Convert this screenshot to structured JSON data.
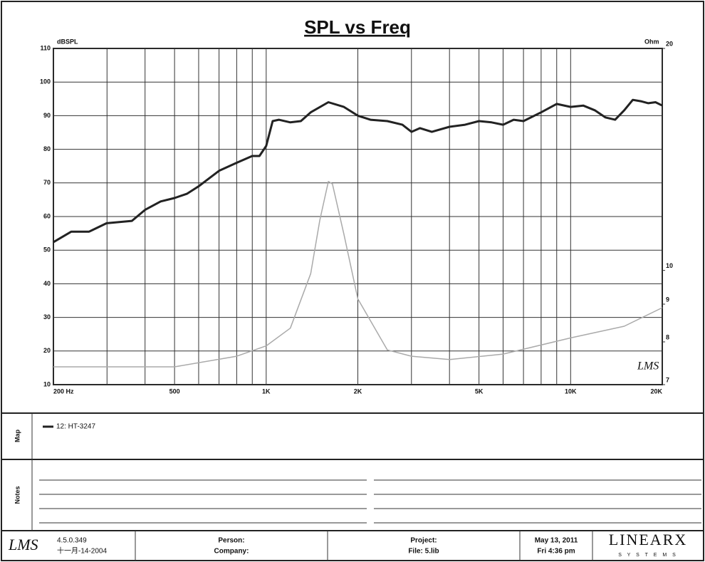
{
  "chart_data": {
    "type": "line",
    "title": "SPL vs Freq",
    "ylabel": "dBSPL",
    "y2label": "Ohm",
    "watermark": "LMS",
    "xscale": "log",
    "y2scale": "log",
    "grid": true,
    "xlim": [
      200,
      20000
    ],
    "xticks": [
      {
        "value": 200,
        "label": "200 Hz"
      },
      500,
      {
        "value": 1000,
        "label": "1K"
      },
      {
        "value": 2000,
        "label": "2K"
      },
      {
        "value": 5000,
        "label": "5K"
      },
      {
        "value": 10000,
        "label": "10K"
      },
      {
        "value": 20000,
        "label": "20K"
      }
    ],
    "xminor": [
      300,
      400,
      600,
      700,
      800,
      900,
      3000,
      4000,
      6000,
      7000,
      8000,
      9000
    ],
    "ylim": [
      10,
      110
    ],
    "yticks": [
      10,
      20,
      30,
      40,
      50,
      60,
      70,
      80,
      90,
      100,
      110
    ],
    "y2lim": [
      7,
      20
    ],
    "y2ticks": [
      7,
      8,
      9,
      10,
      20
    ],
    "series": [
      {
        "name": "12: HT-3247",
        "color": "#222222",
        "x": [
          200,
          229,
          262,
          299,
          362,
          400,
          450,
          500,
          550,
          600,
          700,
          800,
          900,
          950,
          1000,
          1050,
          1100,
          1200,
          1300,
          1400,
          1600,
          1800,
          2000,
          2200,
          2500,
          2800,
          3000,
          3200,
          3500,
          4000,
          4500,
          5000,
          5500,
          6000,
          6500,
          7000,
          8000,
          9000,
          10000,
          11000,
          12000,
          13000,
          14000,
          15000,
          16000,
          17000,
          18000,
          19000,
          20000
        ],
        "values": [
          52.4,
          55.5,
          55.5,
          58,
          58.7,
          62,
          64.5,
          65.5,
          66.8,
          69,
          73.6,
          76,
          78,
          78,
          81,
          88.4,
          88.8,
          88,
          88.4,
          91,
          94,
          92.6,
          90,
          88.8,
          88.4,
          87.3,
          85.2,
          86.3,
          85.2,
          86.7,
          87.3,
          88.4,
          88,
          87.3,
          88.8,
          88.4,
          91,
          93.5,
          92.6,
          93,
          91.6,
          89.5,
          88.8,
          91.6,
          94.7,
          94.3,
          93.7,
          94,
          93
        ]
      },
      {
        "color": "#aaaaaa",
        "axis": "y2",
        "x": [
          200,
          500,
          800,
          1000,
          1200,
          1400,
          1500,
          1600,
          1650,
          1800,
          2000,
          2500,
          3000,
          4000,
          6000,
          10000,
          15000,
          20000
        ],
        "values": [
          7.4,
          7.4,
          7.65,
          7.9,
          8.35,
          9.9,
          11.7,
          13.2,
          13.1,
          11.2,
          9.15,
          7.8,
          7.65,
          7.57,
          7.7,
          8.1,
          8.4,
          8.9
        ]
      }
    ]
  },
  "map": {
    "label": "Map"
  },
  "notes": {
    "label": "Notes"
  },
  "footer": {
    "logo": "LMS",
    "version": "4.5.0.349",
    "date": "十一月-14-2004",
    "person": "Person:",
    "company": "Company:",
    "project": "Project:",
    "file": "File: 5.lib",
    "day": "May 13, 2011",
    "time": "Fri 4:36 pm",
    "brand": "LINEARX",
    "brand_sub": "S Y S T E M S"
  }
}
